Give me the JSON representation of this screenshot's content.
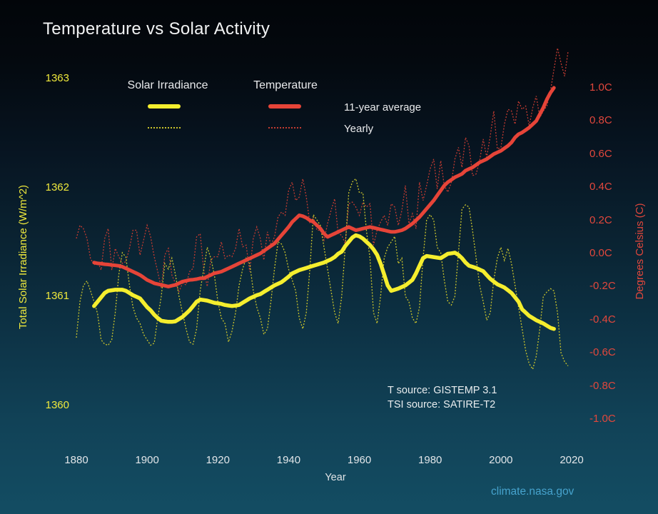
{
  "title": "Temperature vs Solar Activity",
  "legend": {
    "solar_label": "Solar Irradiance",
    "temp_label": "Temperature",
    "avg_label": "11-year average",
    "yearly_label": "Yearly"
  },
  "annotations": {
    "t_source": "T source: GISTEMP 3.1",
    "tsi_source": "TSI source: SATIRE-T2",
    "site": "climate.nasa.gov"
  },
  "colors": {
    "solar": "#f5ee2e",
    "solar_yearly": "#c9c32c",
    "temp": "#e64438",
    "temp_yearly": "#c23b31",
    "left_axis_text": "#efe93c",
    "right_axis_text": "#e2473c",
    "site_link": "#46a3cd",
    "background_top": "#020509",
    "background_bottom": "#134d63"
  },
  "chart_data": {
    "type": "line",
    "title": "Temperature vs Solar Activity",
    "grid": false,
    "legend_position": "top-left",
    "x_axis": {
      "label": "Year",
      "range": [
        1880,
        2020
      ],
      "ticks": [
        "1880",
        "1900",
        "1920",
        "1940",
        "1960",
        "1980",
        "2000",
        "2020"
      ]
    },
    "y_left": {
      "label": "Total Solar Irradiance (W/m^2)",
      "range": [
        1360,
        1363
      ],
      "ticks": [
        "1363",
        "1362",
        "1361",
        "1360"
      ]
    },
    "y_right": {
      "label": "Degrees Celsius (C)",
      "range": [
        -1.0,
        1.0
      ],
      "ticks": [
        "1.0C",
        "0.8C",
        "0.6C",
        "0.4C",
        "0.2C",
        "0.0C",
        "-0.2C",
        "-0.4C",
        "-0.6C",
        "-0.8C",
        "-1.0C"
      ]
    },
    "series": [
      {
        "id": "temp_yearly",
        "name": "Temperature Yearly",
        "axis": "right",
        "style": "yearly",
        "color": "#c23b31",
        "width": 1.3,
        "start_year": 1880,
        "values": [
          0.09,
          0.17,
          0.15,
          0.09,
          -0.03,
          -0.07,
          -0.05,
          -0.1,
          0.09,
          0.15,
          -0.1,
          0.03,
          -0.02,
          -0.06,
          -0.05,
          0.03,
          0.14,
          0.14,
          -0.01,
          0.08,
          0.17,
          0.1,
          -0.02,
          -0.11,
          -0.21,
          -0.01,
          0.03,
          -0.13,
          -0.18,
          -0.23,
          -0.18,
          -0.19,
          -0.11,
          -0.09,
          0.1,
          0.12,
          -0.1,
          -0.2,
          -0.04,
          -0.02,
          -0.02,
          0.07,
          -0.03,
          -0.01,
          -0.02,
          0.03,
          0.15,
          0.04,
          0.05,
          -0.11,
          0.09,
          0.16,
          0.09,
          -0.04,
          0.13,
          0.05,
          0.1,
          0.22,
          0.25,
          0.23,
          0.38,
          0.43,
          0.32,
          0.34,
          0.45,
          0.34,
          0.18,
          0.22,
          0.14,
          0.14,
          0.08,
          0.18,
          0.26,
          0.33,
          0.12,
          0.11,
          0.06,
          0.3,
          0.31,
          0.28,
          0.23,
          0.31,
          0.28,
          0.3,
          0.05,
          0.14,
          0.19,
          0.23,
          0.17,
          0.3,
          0.28,
          0.17,
          0.26,
          0.41,
          0.18,
          0.24,
          0.15,
          0.43,
          0.32,
          0.41,
          0.51,
          0.57,
          0.39,
          0.56,
          0.41,
          0.37,
          0.43,
          0.57,
          0.64,
          0.52,
          0.7,
          0.65,
          0.47,
          0.48,
          0.56,
          0.69,
          0.58,
          0.71,
          0.86,
          0.63,
          0.64,
          0.78,
          0.87,
          0.86,
          0.78,
          0.92,
          0.87,
          0.89,
          0.77,
          0.88,
          0.95,
          0.82,
          0.86,
          0.89,
          0.98,
          1.11,
          1.24,
          1.15,
          1.07,
          1.22
        ]
      },
      {
        "id": "tsi_yearly",
        "name": "Solar Irradiance Yearly",
        "axis": "left",
        "style": "yearly",
        "color": "#c9c32c",
        "width": 1.3,
        "start_year": 1880,
        "values": [
          1360.62,
          1360.95,
          1361.1,
          1361.14,
          1361.05,
          1360.95,
          1360.84,
          1360.6,
          1360.56,
          1360.55,
          1360.6,
          1360.85,
          1361.2,
          1361.4,
          1361.36,
          1361.1,
          1360.9,
          1360.8,
          1360.75,
          1360.65,
          1360.6,
          1360.55,
          1360.57,
          1360.8,
          1361.0,
          1361.3,
          1361.25,
          1361.35,
          1361.2,
          1361.0,
          1360.85,
          1360.7,
          1360.58,
          1360.56,
          1360.7,
          1361.05,
          1361.25,
          1361.45,
          1361.35,
          1361.2,
          1360.95,
          1360.8,
          1360.75,
          1360.58,
          1360.68,
          1360.85,
          1361.1,
          1361.25,
          1361.35,
          1361.3,
          1361.05,
          1360.9,
          1360.8,
          1360.65,
          1360.7,
          1360.95,
          1361.25,
          1361.5,
          1361.48,
          1361.4,
          1361.25,
          1361.15,
          1361.05,
          1360.8,
          1360.7,
          1360.85,
          1361.25,
          1361.75,
          1361.7,
          1361.65,
          1361.45,
          1361.25,
          1361.05,
          1360.85,
          1360.75,
          1361.0,
          1361.45,
          1361.95,
          1362.05,
          1362.08,
          1361.95,
          1361.95,
          1361.6,
          1361.35,
          1360.85,
          1360.75,
          1361.0,
          1361.35,
          1361.45,
          1361.5,
          1361.55,
          1361.3,
          1361.35,
          1361.0,
          1360.95,
          1360.8,
          1360.75,
          1360.9,
          1361.35,
          1361.7,
          1361.75,
          1361.7,
          1361.45,
          1361.4,
          1361.15,
          1360.95,
          1360.92,
          1361.0,
          1361.4,
          1361.8,
          1361.84,
          1361.82,
          1361.6,
          1361.35,
          1361.1,
          1360.95,
          1360.78,
          1360.85,
          1361.15,
          1361.35,
          1361.45,
          1361.33,
          1361.44,
          1361.3,
          1361.1,
          1360.9,
          1360.7,
          1360.5,
          1360.38,
          1360.33,
          1360.45,
          1360.7,
          1361.0,
          1361.04,
          1361.07,
          1361.05,
          1360.85,
          1360.48,
          1360.4,
          1360.36
        ]
      },
      {
        "id": "temp_11yr",
        "name": "Temperature 11-year average",
        "axis": "right",
        "style": "avg",
        "color": "#e64438",
        "width": 5,
        "start_year": 1885,
        "values": [
          -0.055,
          -0.06,
          -0.062,
          -0.065,
          -0.067,
          -0.07,
          -0.072,
          -0.075,
          -0.08,
          -0.09,
          -0.1,
          -0.11,
          -0.12,
          -0.13,
          -0.145,
          -0.16,
          -0.17,
          -0.18,
          -0.185,
          -0.19,
          -0.195,
          -0.2,
          -0.195,
          -0.19,
          -0.18,
          -0.17,
          -0.165,
          -0.16,
          -0.158,
          -0.155,
          -0.15,
          -0.15,
          -0.14,
          -0.13,
          -0.12,
          -0.115,
          -0.11,
          -0.1,
          -0.09,
          -0.08,
          -0.07,
          -0.06,
          -0.05,
          -0.04,
          -0.03,
          -0.02,
          -0.01,
          0.0,
          0.015,
          0.03,
          0.045,
          0.06,
          0.085,
          0.11,
          0.135,
          0.16,
          0.19,
          0.21,
          0.23,
          0.225,
          0.215,
          0.2,
          0.19,
          0.17,
          0.15,
          0.12,
          0.1,
          0.11,
          0.12,
          0.13,
          0.14,
          0.15,
          0.16,
          0.15,
          0.14,
          0.145,
          0.15,
          0.155,
          0.16,
          0.155,
          0.15,
          0.145,
          0.14,
          0.135,
          0.13,
          0.13,
          0.135,
          0.14,
          0.15,
          0.165,
          0.18,
          0.2,
          0.22,
          0.245,
          0.27,
          0.295,
          0.32,
          0.35,
          0.38,
          0.41,
          0.43,
          0.445,
          0.46,
          0.47,
          0.48,
          0.5,
          0.51,
          0.52,
          0.535,
          0.55,
          0.56,
          0.57,
          0.585,
          0.6,
          0.61,
          0.62,
          0.635,
          0.65,
          0.67,
          0.7,
          0.72,
          0.73,
          0.745,
          0.76,
          0.78,
          0.8,
          0.84,
          0.88,
          0.93,
          0.97,
          1.0
        ]
      },
      {
        "id": "tsi_11yr",
        "name": "Solar Irradiance 11-year average",
        "axis": "left",
        "style": "avg",
        "color": "#f5ee2e",
        "width": 5.5,
        "start_year": 1885,
        "values": [
          1360.91,
          1360.95,
          1360.99,
          1361.03,
          1361.05,
          1361.055,
          1361.06,
          1361.06,
          1361.06,
          1361.05,
          1361.03,
          1361.01,
          1360.995,
          1360.98,
          1360.94,
          1360.9,
          1360.87,
          1360.83,
          1360.8,
          1360.775,
          1360.77,
          1360.765,
          1360.765,
          1360.77,
          1360.79,
          1360.81,
          1360.84,
          1360.87,
          1360.91,
          1360.95,
          1360.97,
          1360.965,
          1360.96,
          1360.95,
          1360.94,
          1360.935,
          1360.93,
          1360.92,
          1360.915,
          1360.91,
          1360.915,
          1360.92,
          1360.94,
          1360.96,
          1360.98,
          1360.995,
          1361.01,
          1361.02,
          1361.04,
          1361.06,
          1361.08,
          1361.1,
          1361.115,
          1361.13,
          1361.155,
          1361.18,
          1361.21,
          1361.225,
          1361.24,
          1361.25,
          1361.26,
          1361.27,
          1361.28,
          1361.29,
          1361.3,
          1361.31,
          1361.325,
          1361.34,
          1361.36,
          1361.39,
          1361.41,
          1361.46,
          1361.5,
          1361.54,
          1361.56,
          1361.55,
          1361.53,
          1361.5,
          1361.47,
          1361.43,
          1361.38,
          1361.3,
          1361.2,
          1361.1,
          1361.05,
          1361.06,
          1361.07,
          1361.085,
          1361.1,
          1361.125,
          1361.15,
          1361.21,
          1361.28,
          1361.35,
          1361.37,
          1361.365,
          1361.36,
          1361.355,
          1361.35,
          1361.37,
          1361.39,
          1361.395,
          1361.4,
          1361.38,
          1361.35,
          1361.31,
          1361.28,
          1361.27,
          1361.26,
          1361.245,
          1361.23,
          1361.195,
          1361.16,
          1361.135,
          1361.11,
          1361.095,
          1361.08,
          1361.055,
          1361.03,
          1360.99,
          1360.95,
          1360.88,
          1360.85,
          1360.82,
          1360.8,
          1360.78,
          1360.765,
          1360.75,
          1360.73,
          1360.71,
          1360.7
        ]
      }
    ]
  }
}
